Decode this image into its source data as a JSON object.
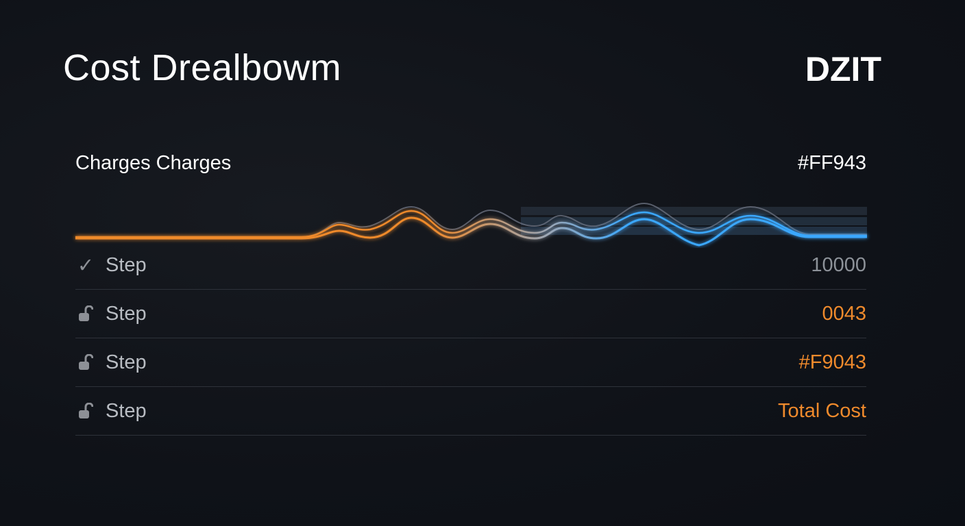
{
  "header": {
    "title": "Cost Drealbowm",
    "brand": "DZIT"
  },
  "section": {
    "label": "Charges Charges",
    "code": "#FF943"
  },
  "colors": {
    "orange": "#ef8a2c",
    "blue": "#3aa8ff",
    "background": "#10131a"
  },
  "steps": [
    {
      "icon": "check-icon",
      "label": "Step",
      "value": "10000",
      "value_color": "#8d9299"
    },
    {
      "icon": "unlock-icon",
      "label": "Step",
      "value": "0043",
      "value_color": "#ef8a2c"
    },
    {
      "icon": "unlock-icon",
      "label": "Step",
      "value": "#F9043",
      "value_color": "#ef8a2c"
    },
    {
      "icon": "unlock-icon",
      "label": "Step",
      "value": "Total Cost",
      "value_color": "#ef8a2c"
    }
  ]
}
